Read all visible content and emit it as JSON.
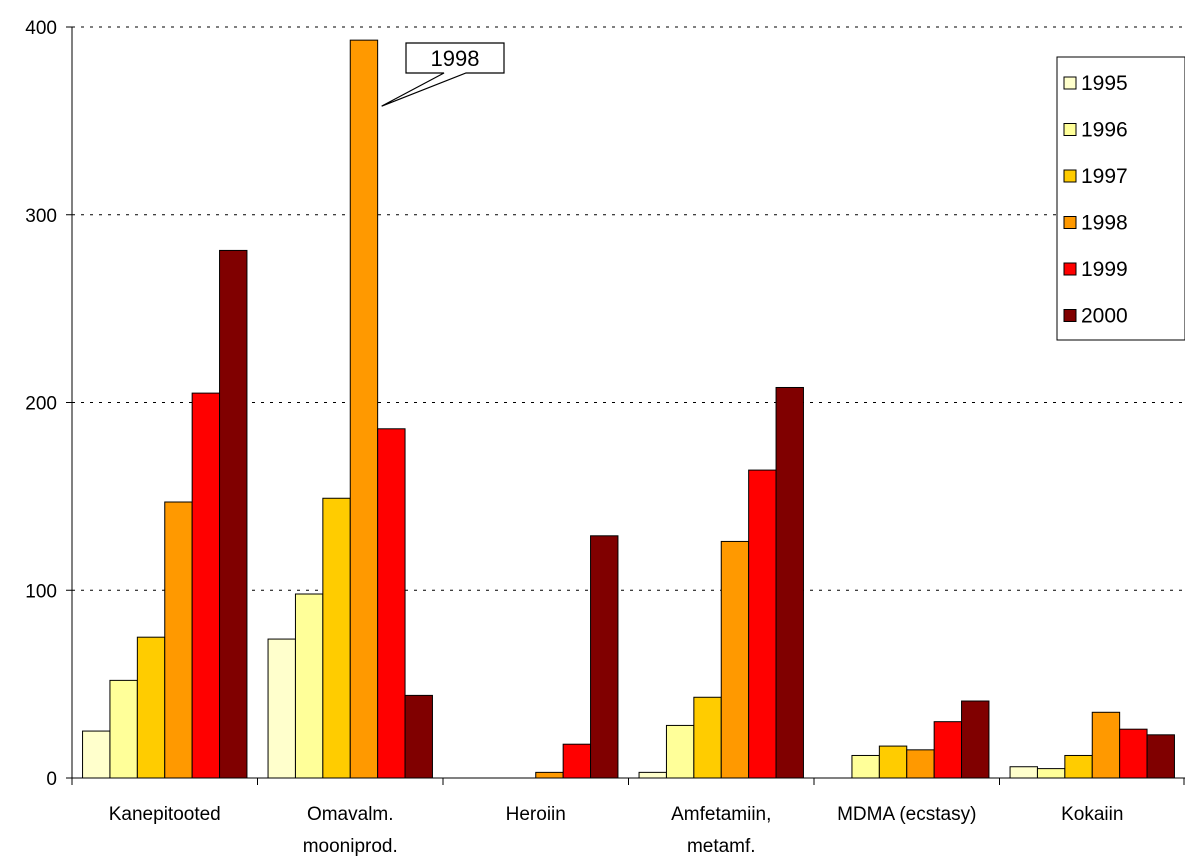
{
  "chart_data": {
    "type": "bar",
    "categories": [
      [
        "Kanepitooted"
      ],
      [
        "Omavalm.",
        "mooniprod."
      ],
      [
        "Heroiin"
      ],
      [
        "Amfetamiin,",
        "metamf."
      ],
      [
        "MDMA (ecstasy)"
      ],
      [
        "Kokaiin"
      ]
    ],
    "series": [
      {
        "name": "1995",
        "color": "#FFFFCC",
        "values": [
          25,
          74,
          0,
          3,
          0,
          6
        ]
      },
      {
        "name": "1996",
        "color": "#FFFF99",
        "values": [
          52,
          98,
          0,
          28,
          12,
          5
        ]
      },
      {
        "name": "1997",
        "color": "#FFCC00",
        "values": [
          75,
          149,
          0,
          43,
          17,
          12
        ]
      },
      {
        "name": "1998",
        "color": "#FF9900",
        "values": [
          147,
          393,
          3,
          126,
          15,
          35
        ]
      },
      {
        "name": "1999",
        "color": "#FF0000",
        "values": [
          205,
          186,
          18,
          164,
          30,
          26
        ]
      },
      {
        "name": "2000",
        "color": "#800000",
        "values": [
          281,
          44,
          129,
          208,
          41,
          23
        ]
      }
    ],
    "yticks": [
      "0",
      "100",
      "200",
      "300",
      "400"
    ],
    "ylim": [
      0,
      400
    ],
    "grid": true,
    "legend_position": "top-right",
    "annotation": {
      "text": "1998",
      "series": "1998",
      "category_index": 1
    }
  }
}
